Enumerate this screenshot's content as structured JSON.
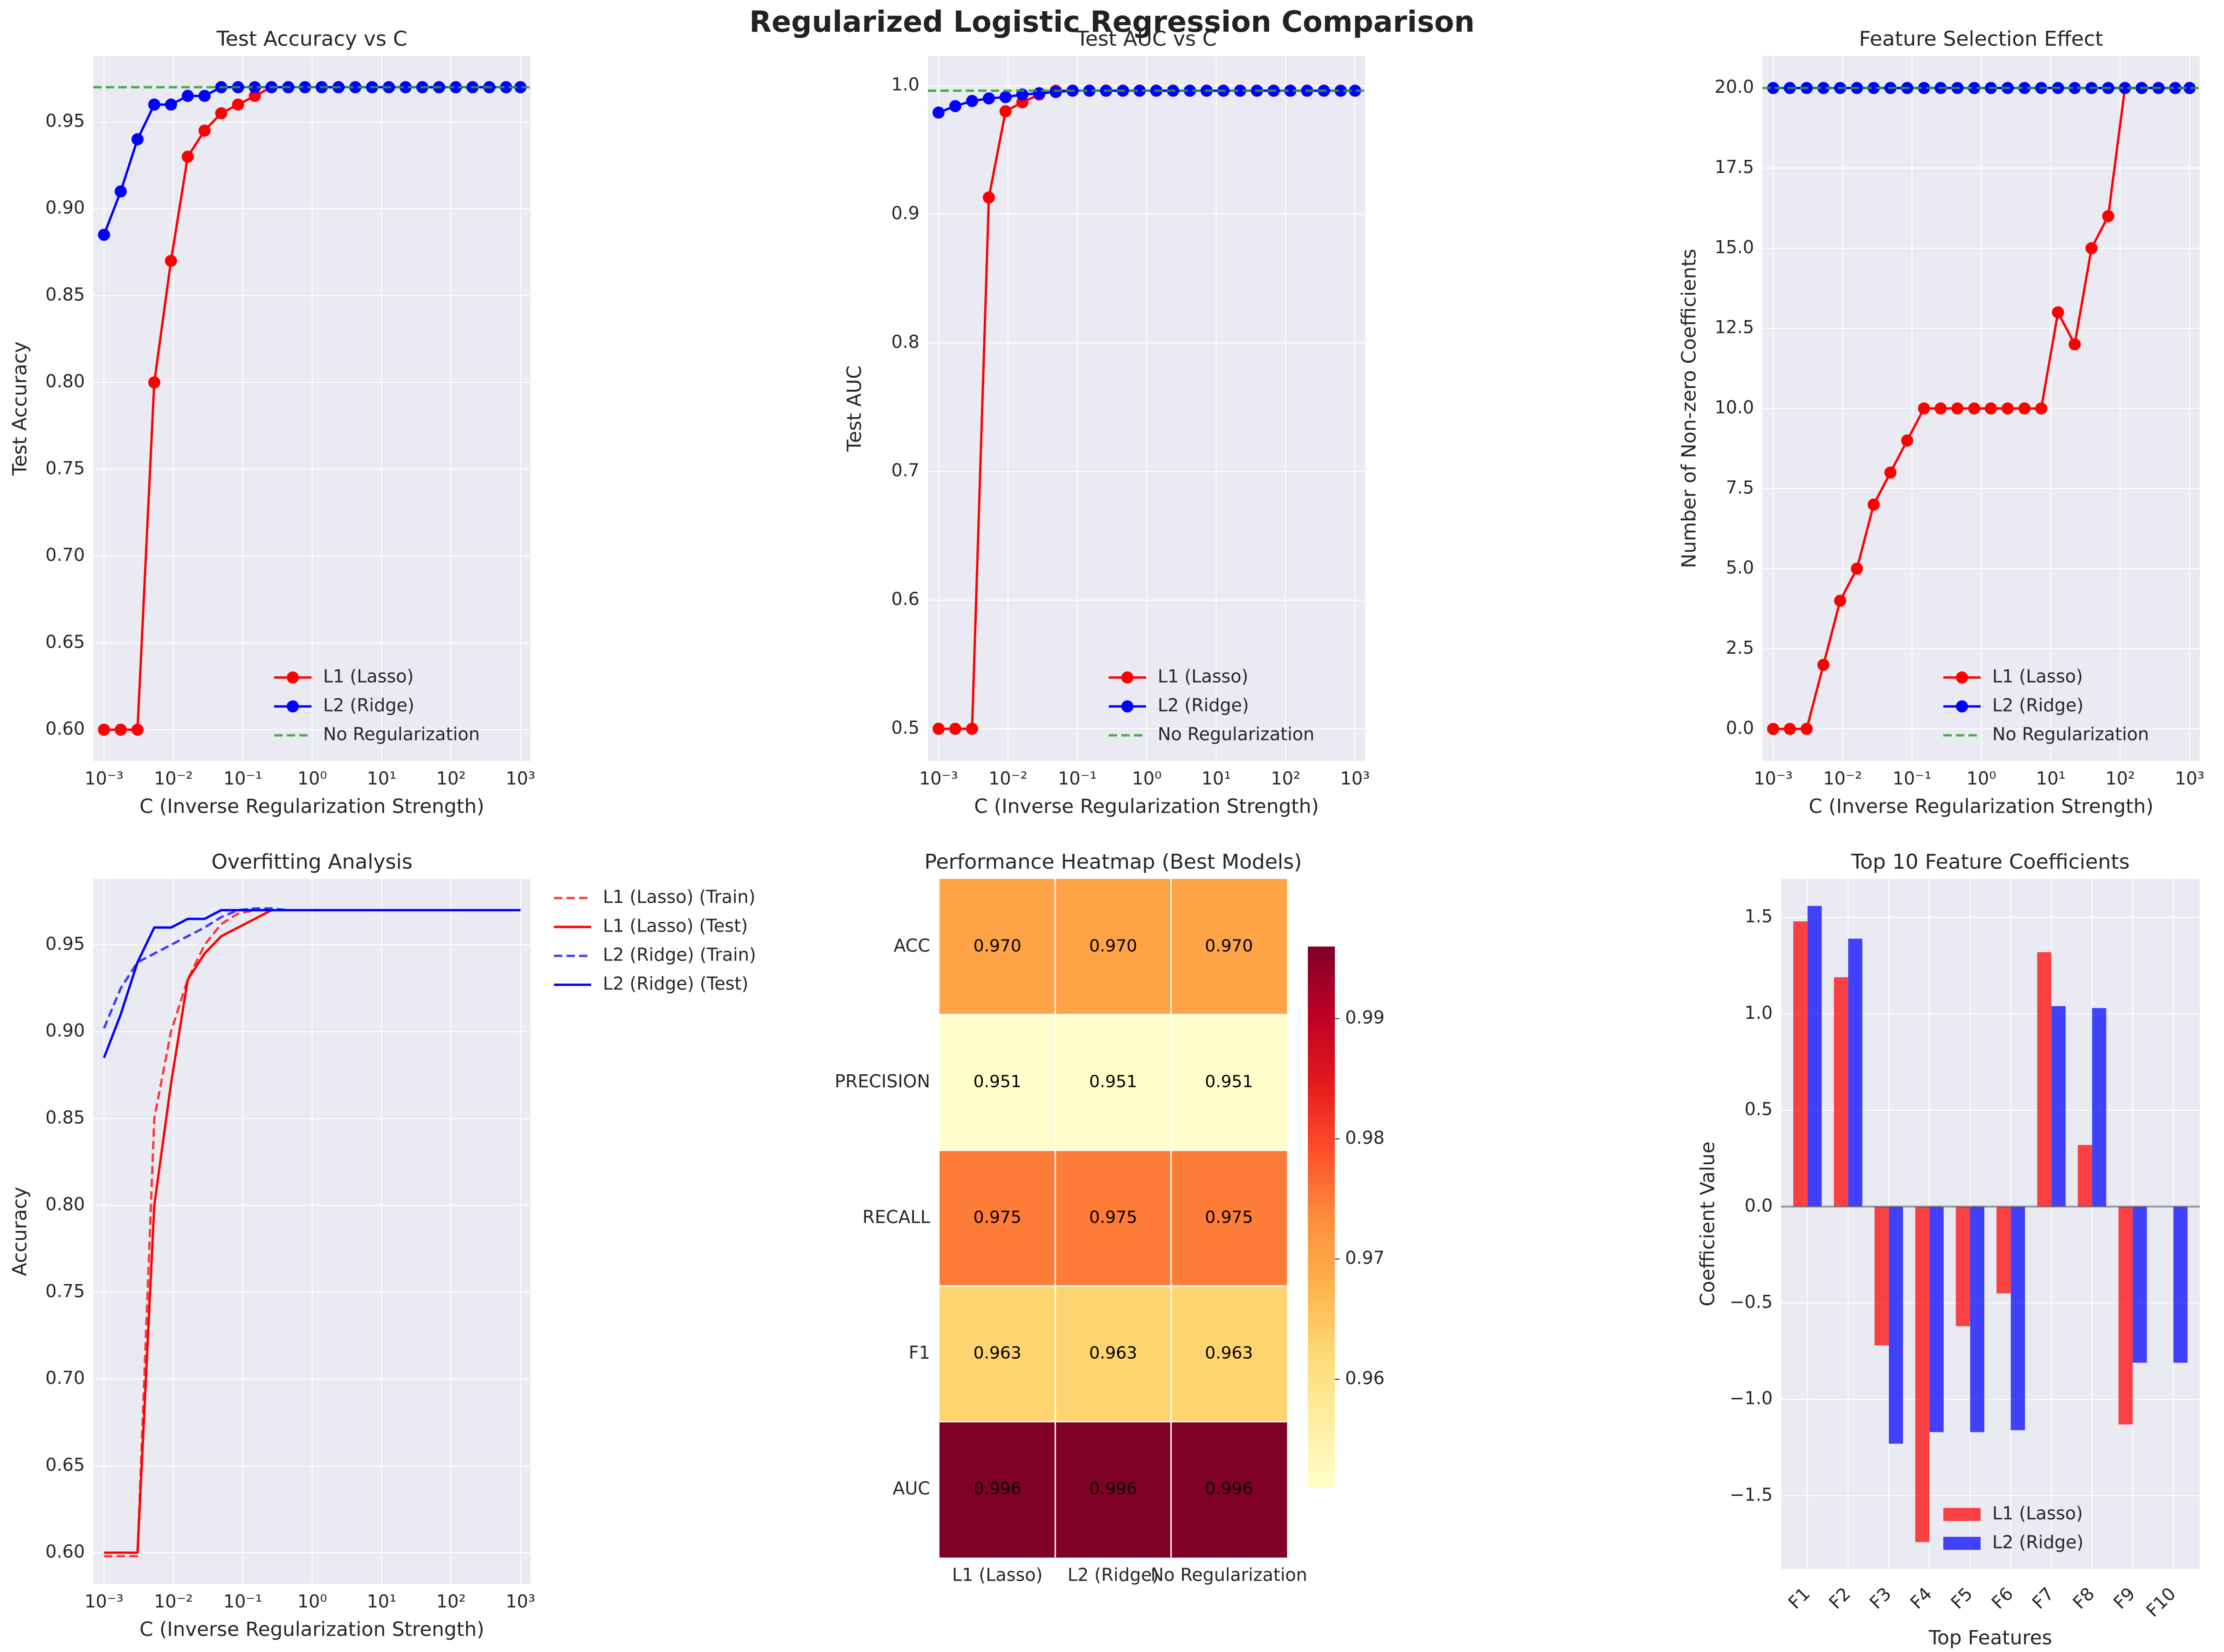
{
  "figure": {
    "title": "Regularized Logistic Regression Comparison",
    "colors": {
      "l1": "#ff0000",
      "l2": "#0000ff",
      "none": "#2ca02c",
      "axes_bg": "#eaeaf2",
      "grid": "#ffffff"
    }
  },
  "chart_data": [
    {
      "id": "acc",
      "type": "line",
      "title": "Test Accuracy vs C",
      "xlabel": "C (Inverse Regularization Strength)",
      "ylabel": "Test Accuracy",
      "xscale": "log",
      "xlim": [
        0.0007,
        1400
      ],
      "ylim": [
        0.582,
        0.988
      ],
      "xticks": [
        0.001,
        0.01,
        0.1,
        1,
        10,
        100,
        1000
      ],
      "xticklabels": [
        "10⁻³",
        "10⁻²",
        "10⁻¹",
        "10⁰",
        "10¹",
        "10²",
        "10³"
      ],
      "yticks": [
        0.6,
        0.65,
        0.7,
        0.75,
        0.8,
        0.85,
        0.9,
        0.95
      ],
      "yticklabels": [
        "0.60",
        "0.65",
        "0.70",
        "0.75",
        "0.80",
        "0.85",
        "0.90",
        "0.95"
      ],
      "grid": true,
      "legend_position": "lower right",
      "series": [
        {
          "name": "L1 (Lasso)",
          "color": "#ff0000",
          "marker": true,
          "dash": false,
          "x": [
            0.001,
            0.00174,
            0.00304,
            0.0053,
            0.00923,
            0.0161,
            0.0281,
            0.0489,
            0.0853,
            0.149,
            0.259,
            0.452,
            0.788,
            1.37,
            2.39,
            4.18,
            7.28,
            12.7,
            22.1,
            38.6,
            67.2,
            117,
            204,
            356,
            621,
            1000
          ],
          "y": [
            0.6,
            0.6,
            0.6,
            0.8,
            0.87,
            0.93,
            0.945,
            0.955,
            0.96,
            0.965,
            0.97,
            0.97,
            0.97,
            0.97,
            0.97,
            0.97,
            0.97,
            0.97,
            0.97,
            0.97,
            0.97,
            0.97,
            0.97,
            0.97,
            0.97,
            0.97
          ]
        },
        {
          "name": "L2 (Ridge)",
          "color": "#0000ff",
          "marker": true,
          "dash": false,
          "x": [
            0.001,
            0.00174,
            0.00304,
            0.0053,
            0.00923,
            0.0161,
            0.0281,
            0.0489,
            0.0853,
            0.149,
            0.259,
            0.452,
            0.788,
            1.37,
            2.39,
            4.18,
            7.28,
            12.7,
            22.1,
            38.6,
            67.2,
            117,
            204,
            356,
            621,
            1000
          ],
          "y": [
            0.885,
            0.91,
            0.94,
            0.96,
            0.96,
            0.965,
            0.965,
            0.97,
            0.97,
            0.97,
            0.97,
            0.97,
            0.97,
            0.97,
            0.97,
            0.97,
            0.97,
            0.97,
            0.97,
            0.97,
            0.97,
            0.97,
            0.97,
            0.97,
            0.97,
            0.97
          ]
        }
      ],
      "hline": {
        "name": "No Regularization",
        "color": "#2ca02c",
        "y": 0.97
      }
    },
    {
      "id": "auc",
      "type": "line",
      "title": "Test AUC vs C",
      "xlabel": "C (Inverse Regularization Strength)",
      "ylabel": "Test AUC",
      "xscale": "log",
      "xlim": [
        0.0007,
        1400
      ],
      "ylim": [
        0.475,
        1.023
      ],
      "xticks": [
        0.001,
        0.01,
        0.1,
        1,
        10,
        100,
        1000
      ],
      "xticklabels": [
        "10⁻³",
        "10⁻²",
        "10⁻¹",
        "10⁰",
        "10¹",
        "10²",
        "10³"
      ],
      "yticks": [
        0.5,
        0.6,
        0.7,
        0.8,
        0.9,
        1.0
      ],
      "yticklabels": [
        "0.5",
        "0.6",
        "0.7",
        "0.8",
        "0.9",
        "1.0"
      ],
      "grid": true,
      "legend_position": "lower right",
      "series": [
        {
          "name": "L1 (Lasso)",
          "color": "#ff0000",
          "marker": true,
          "dash": false,
          "x": [
            0.001,
            0.00174,
            0.00304,
            0.0053,
            0.00923,
            0.0161,
            0.0281,
            0.0489,
            0.0853,
            0.149,
            0.259,
            0.452,
            0.788,
            1.37,
            2.39,
            4.18,
            7.28,
            12.7,
            22.1,
            38.6,
            67.2,
            117,
            204,
            356,
            621,
            1000
          ],
          "y": [
            0.5,
            0.5,
            0.5,
            0.913,
            0.98,
            0.987,
            0.993,
            0.996,
            0.996,
            0.996,
            0.996,
            0.996,
            0.996,
            0.996,
            0.996,
            0.996,
            0.996,
            0.996,
            0.996,
            0.996,
            0.996,
            0.996,
            0.996,
            0.996,
            0.996,
            0.996
          ]
        },
        {
          "name": "L2 (Ridge)",
          "color": "#0000ff",
          "marker": true,
          "dash": false,
          "x": [
            0.001,
            0.00174,
            0.00304,
            0.0053,
            0.00923,
            0.0161,
            0.0281,
            0.0489,
            0.0853,
            0.149,
            0.259,
            0.452,
            0.788,
            1.37,
            2.39,
            4.18,
            7.28,
            12.7,
            22.1,
            38.6,
            67.2,
            117,
            204,
            356,
            621,
            1000
          ],
          "y": [
            0.979,
            0.984,
            0.988,
            0.99,
            0.991,
            0.993,
            0.994,
            0.995,
            0.996,
            0.996,
            0.996,
            0.996,
            0.996,
            0.996,
            0.996,
            0.996,
            0.996,
            0.996,
            0.996,
            0.996,
            0.996,
            0.996,
            0.996,
            0.996,
            0.996,
            0.996
          ]
        }
      ],
      "hline": {
        "name": "No Regularization",
        "color": "#2ca02c",
        "y": 0.996
      }
    },
    {
      "id": "nz",
      "type": "line",
      "title": "Feature Selection Effect",
      "xlabel": "C (Inverse Regularization Strength)",
      "ylabel": "Number of Non-zero Coefficients",
      "xscale": "log",
      "xlim": [
        0.0007,
        1400
      ],
      "ylim": [
        -1.0,
        21.0
      ],
      "xticks": [
        0.001,
        0.01,
        0.1,
        1,
        10,
        100,
        1000
      ],
      "xticklabels": [
        "10⁻³",
        "10⁻²",
        "10⁻¹",
        "10⁰",
        "10¹",
        "10²",
        "10³"
      ],
      "yticks": [
        0.0,
        2.5,
        5.0,
        7.5,
        10.0,
        12.5,
        15.0,
        17.5,
        20.0
      ],
      "yticklabels": [
        "0.0",
        "2.5",
        "5.0",
        "7.5",
        "10.0",
        "12.5",
        "15.0",
        "17.5",
        "20.0"
      ],
      "grid": true,
      "legend_position": "lower right",
      "series": [
        {
          "name": "L1 (Lasso)",
          "color": "#ff0000",
          "marker": true,
          "dash": false,
          "x": [
            0.001,
            0.00174,
            0.00304,
            0.0053,
            0.00923,
            0.0161,
            0.0281,
            0.0489,
            0.0853,
            0.149,
            0.259,
            0.452,
            0.788,
            1.37,
            2.39,
            4.18,
            7.28,
            12.7,
            22.1,
            38.6,
            67.2,
            117,
            204,
            356,
            621,
            1000
          ],
          "y": [
            0,
            0,
            0,
            2,
            4,
            5,
            7,
            8,
            9,
            10,
            10,
            10,
            10,
            10,
            10,
            10,
            10,
            13,
            12,
            15,
            16,
            20,
            20,
            20,
            20,
            20
          ]
        },
        {
          "name": "L2 (Ridge)",
          "color": "#0000ff",
          "marker": true,
          "dash": false,
          "x": [
            0.001,
            0.00174,
            0.00304,
            0.0053,
            0.00923,
            0.0161,
            0.0281,
            0.0489,
            0.0853,
            0.149,
            0.259,
            0.452,
            0.788,
            1.37,
            2.39,
            4.18,
            7.28,
            12.7,
            22.1,
            38.6,
            67.2,
            117,
            204,
            356,
            621,
            1000
          ],
          "y": [
            20,
            20,
            20,
            20,
            20,
            20,
            20,
            20,
            20,
            20,
            20,
            20,
            20,
            20,
            20,
            20,
            20,
            20,
            20,
            20,
            20,
            20,
            20,
            20,
            20,
            20
          ]
        }
      ],
      "hline": {
        "name": "No Regularization",
        "color": "#2ca02c",
        "y": 20
      }
    },
    {
      "id": "overfit",
      "type": "line",
      "title": "Overfitting Analysis",
      "xlabel": "C (Inverse Regularization Strength)",
      "ylabel": "Accuracy",
      "xscale": "log",
      "xlim": [
        0.0007,
        1400
      ],
      "ylim": [
        0.582,
        0.988
      ],
      "xticks": [
        0.001,
        0.01,
        0.1,
        1,
        10,
        100,
        1000
      ],
      "xticklabels": [
        "10⁻³",
        "10⁻²",
        "10⁻¹",
        "10⁰",
        "10¹",
        "10²",
        "10³"
      ],
      "yticks": [
        0.6,
        0.65,
        0.7,
        0.75,
        0.8,
        0.85,
        0.9,
        0.95
      ],
      "yticklabels": [
        "0.60",
        "0.65",
        "0.70",
        "0.75",
        "0.80",
        "0.85",
        "0.90",
        "0.95"
      ],
      "grid": true,
      "legend_position": "outside right",
      "series": [
        {
          "name": "L1 (Lasso) (Train)",
          "color": "#ff0000",
          "marker": false,
          "dash": true,
          "alpha": 0.75,
          "x": [
            0.001,
            0.00174,
            0.00304,
            0.0053,
            0.00923,
            0.0161,
            0.0281,
            0.0489,
            0.0853,
            0.149,
            0.259,
            0.452,
            0.788,
            1.37,
            2.39,
            4.18,
            7.28,
            12.7,
            22.1,
            38.6,
            67.2,
            117,
            204,
            356,
            621,
            1000
          ],
          "y": [
            0.598,
            0.598,
            0.598,
            0.85,
            0.9,
            0.93,
            0.95,
            0.962,
            0.968,
            0.97,
            0.97,
            0.97,
            0.97,
            0.97,
            0.97,
            0.97,
            0.97,
            0.97,
            0.97,
            0.97,
            0.97,
            0.97,
            0.97,
            0.97,
            0.97,
            0.97
          ]
        },
        {
          "name": "L1 (Lasso) (Test)",
          "color": "#ff0000",
          "marker": false,
          "dash": false,
          "alpha": 1,
          "x": [
            0.001,
            0.00174,
            0.00304,
            0.0053,
            0.00923,
            0.0161,
            0.0281,
            0.0489,
            0.0853,
            0.149,
            0.259,
            0.452,
            0.788,
            1.37,
            2.39,
            4.18,
            7.28,
            12.7,
            22.1,
            38.6,
            67.2,
            117,
            204,
            356,
            621,
            1000
          ],
          "y": [
            0.6,
            0.6,
            0.6,
            0.8,
            0.87,
            0.93,
            0.945,
            0.955,
            0.96,
            0.965,
            0.97,
            0.97,
            0.97,
            0.97,
            0.97,
            0.97,
            0.97,
            0.97,
            0.97,
            0.97,
            0.97,
            0.97,
            0.97,
            0.97,
            0.97,
            0.97
          ]
        },
        {
          "name": "L2 (Ridge) (Train)",
          "color": "#0000ff",
          "marker": false,
          "dash": true,
          "alpha": 0.75,
          "x": [
            0.001,
            0.00174,
            0.00304,
            0.0053,
            0.00923,
            0.0161,
            0.0281,
            0.0489,
            0.0853,
            0.149,
            0.259,
            0.452,
            0.788,
            1.37,
            2.39,
            4.18,
            7.28,
            12.7,
            22.1,
            38.6,
            67.2,
            117,
            204,
            356,
            621,
            1000
          ],
          "y": [
            0.902,
            0.925,
            0.94,
            0.945,
            0.95,
            0.955,
            0.96,
            0.966,
            0.97,
            0.971,
            0.971,
            0.97,
            0.97,
            0.97,
            0.97,
            0.97,
            0.97,
            0.97,
            0.97,
            0.97,
            0.97,
            0.97,
            0.97,
            0.97,
            0.97,
            0.97
          ]
        },
        {
          "name": "L2 (Ridge) (Test)",
          "color": "#0000ff",
          "marker": false,
          "dash": false,
          "alpha": 1,
          "x": [
            0.001,
            0.00174,
            0.00304,
            0.0053,
            0.00923,
            0.0161,
            0.0281,
            0.0489,
            0.0853,
            0.149,
            0.259,
            0.452,
            0.788,
            1.37,
            2.39,
            4.18,
            7.28,
            12.7,
            22.1,
            38.6,
            67.2,
            117,
            204,
            356,
            621,
            1000
          ],
          "y": [
            0.885,
            0.91,
            0.94,
            0.96,
            0.96,
            0.965,
            0.965,
            0.97,
            0.97,
            0.97,
            0.97,
            0.97,
            0.97,
            0.97,
            0.97,
            0.97,
            0.97,
            0.97,
            0.97,
            0.97,
            0.97,
            0.97,
            0.97,
            0.97,
            0.97,
            0.97
          ]
        }
      ]
    },
    {
      "id": "heat",
      "type": "heatmap",
      "title": "Performance Heatmap (Best Models)",
      "columns": [
        "L1 (Lasso)",
        "L2 (Ridge)",
        "No Regularization"
      ],
      "rows": [
        "ACC",
        "PRECISION",
        "RECALL",
        "F1",
        "AUC"
      ],
      "values": [
        [
          0.97,
          0.97,
          0.97
        ],
        [
          0.951,
          0.951,
          0.951
        ],
        [
          0.975,
          0.975,
          0.975
        ],
        [
          0.963,
          0.963,
          0.963
        ],
        [
          0.996,
          0.996,
          0.996
        ]
      ],
      "labels": [
        [
          "0.970",
          "0.970",
          "0.970"
        ],
        [
          "0.951",
          "0.951",
          "0.951"
        ],
        [
          "0.975",
          "0.975",
          "0.975"
        ],
        [
          "0.963",
          "0.963",
          "0.963"
        ],
        [
          "0.996",
          "0.996",
          "0.996"
        ]
      ],
      "colormap": "YlOrRd",
      "vmin": 0.951,
      "vmax": 0.996,
      "colorbar_ticks": [
        0.96,
        0.97,
        0.98,
        0.99
      ],
      "colorbar_ticklabels": [
        "0.96",
        "0.97",
        "0.98",
        "0.99"
      ]
    },
    {
      "id": "coef",
      "type": "bar",
      "title": "Top 10 Feature Coefficients",
      "xlabel": "Top Features",
      "ylabel": "Coefficient Value",
      "categories": [
        "F1",
        "F2",
        "F3",
        "F4",
        "F5",
        "F6",
        "F7",
        "F8",
        "F9",
        "F10"
      ],
      "ylim": [
        -1.88,
        1.7
      ],
      "yticks": [
        -1.5,
        -1.0,
        -0.5,
        0.0,
        0.5,
        1.0,
        1.5
      ],
      "yticklabels": [
        "−1.5",
        "−1.0",
        "−0.5",
        "0.0",
        "0.5",
        "1.0",
        "1.5"
      ],
      "grid": true,
      "legend_position": "lower right",
      "series": [
        {
          "name": "L1 (Lasso)",
          "color": "#ff0000",
          "values": [
            1.48,
            1.19,
            -0.72,
            -1.74,
            -0.62,
            -0.45,
            1.32,
            0.32,
            -1.13,
            0.0
          ]
        },
        {
          "name": "L2 (Ridge)",
          "color": "#0000ff",
          "values": [
            1.56,
            1.39,
            -1.23,
            -1.17,
            -1.17,
            -1.16,
            1.04,
            1.03,
            -0.81,
            -0.81
          ]
        }
      ]
    }
  ]
}
